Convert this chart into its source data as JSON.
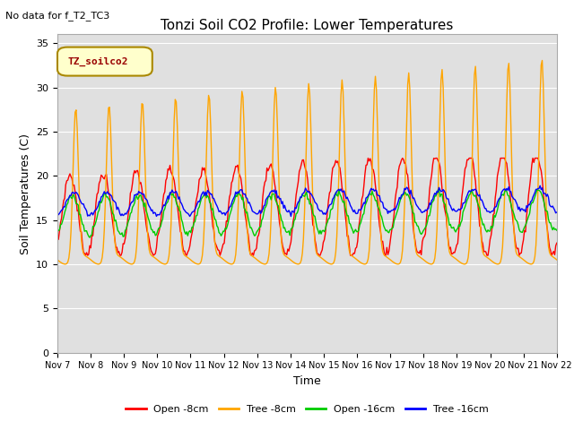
{
  "title": "Tonzi Soil CO2 Profile: Lower Temperatures",
  "subtitle": "No data for f_T2_TC3",
  "ylabel": "Soil Temperatures (C)",
  "xlabel": "Time",
  "legend_label": "TZ_soilco2",
  "series_labels": [
    "Open -8cm",
    "Tree -8cm",
    "Open -16cm",
    "Tree -16cm"
  ],
  "series_colors": [
    "#ff0000",
    "#ffa500",
    "#00cc00",
    "#0000ff"
  ],
  "ylim": [
    0,
    36
  ],
  "yticks": [
    0,
    5,
    10,
    15,
    20,
    25,
    30,
    35
  ],
  "x_tick_labels": [
    "Nov 7",
    "Nov 8",
    "Nov 9",
    "Nov 10",
    "Nov 11",
    "Nov 12",
    "Nov 13",
    "Nov 14",
    "Nov 15",
    "Nov 16",
    "Nov 17",
    "Nov 18",
    "Nov 19",
    "Nov 20",
    "Nov 21",
    "Nov 22"
  ],
  "bg_color": "#e0e0e0",
  "line_width": 1.0,
  "figsize": [
    6.4,
    4.8
  ],
  "dpi": 100
}
